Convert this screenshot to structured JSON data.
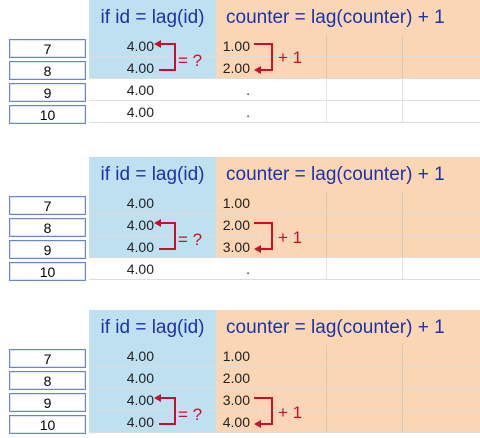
{
  "header": {
    "id_col": "if id = lag(id)",
    "counter_col": "counter = lag(counter) + 1"
  },
  "annotations": {
    "equals_q": "= ?",
    "plus_one": "+ 1"
  },
  "colors": {
    "id_column_bg": "#bfe0f1",
    "counter_column_bg": "#fbd6b4",
    "annotation_red": "#c8102e",
    "header_text": "#1a33a8"
  },
  "panels": [
    {
      "rows": [
        {
          "row": "7",
          "id": "4.00",
          "counter": "1.00"
        },
        {
          "row": "8",
          "id": "4.00",
          "counter": "2.00"
        },
        {
          "row": "9",
          "id": "4.00",
          "counter": "."
        },
        {
          "row": "10",
          "id": "4.00",
          "counter": "."
        }
      ]
    },
    {
      "rows": [
        {
          "row": "7",
          "id": "4.00",
          "counter": "1.00"
        },
        {
          "row": "8",
          "id": "4.00",
          "counter": "2.00"
        },
        {
          "row": "9",
          "id": "4.00",
          "counter": "3.00"
        },
        {
          "row": "10",
          "id": "4.00",
          "counter": "."
        }
      ]
    },
    {
      "rows": [
        {
          "row": "7",
          "id": "4.00",
          "counter": "1.00"
        },
        {
          "row": "8",
          "id": "4.00",
          "counter": "2.00"
        },
        {
          "row": "9",
          "id": "4.00",
          "counter": "3.00"
        },
        {
          "row": "10",
          "id": "4.00",
          "counter": "4.00"
        }
      ]
    }
  ]
}
